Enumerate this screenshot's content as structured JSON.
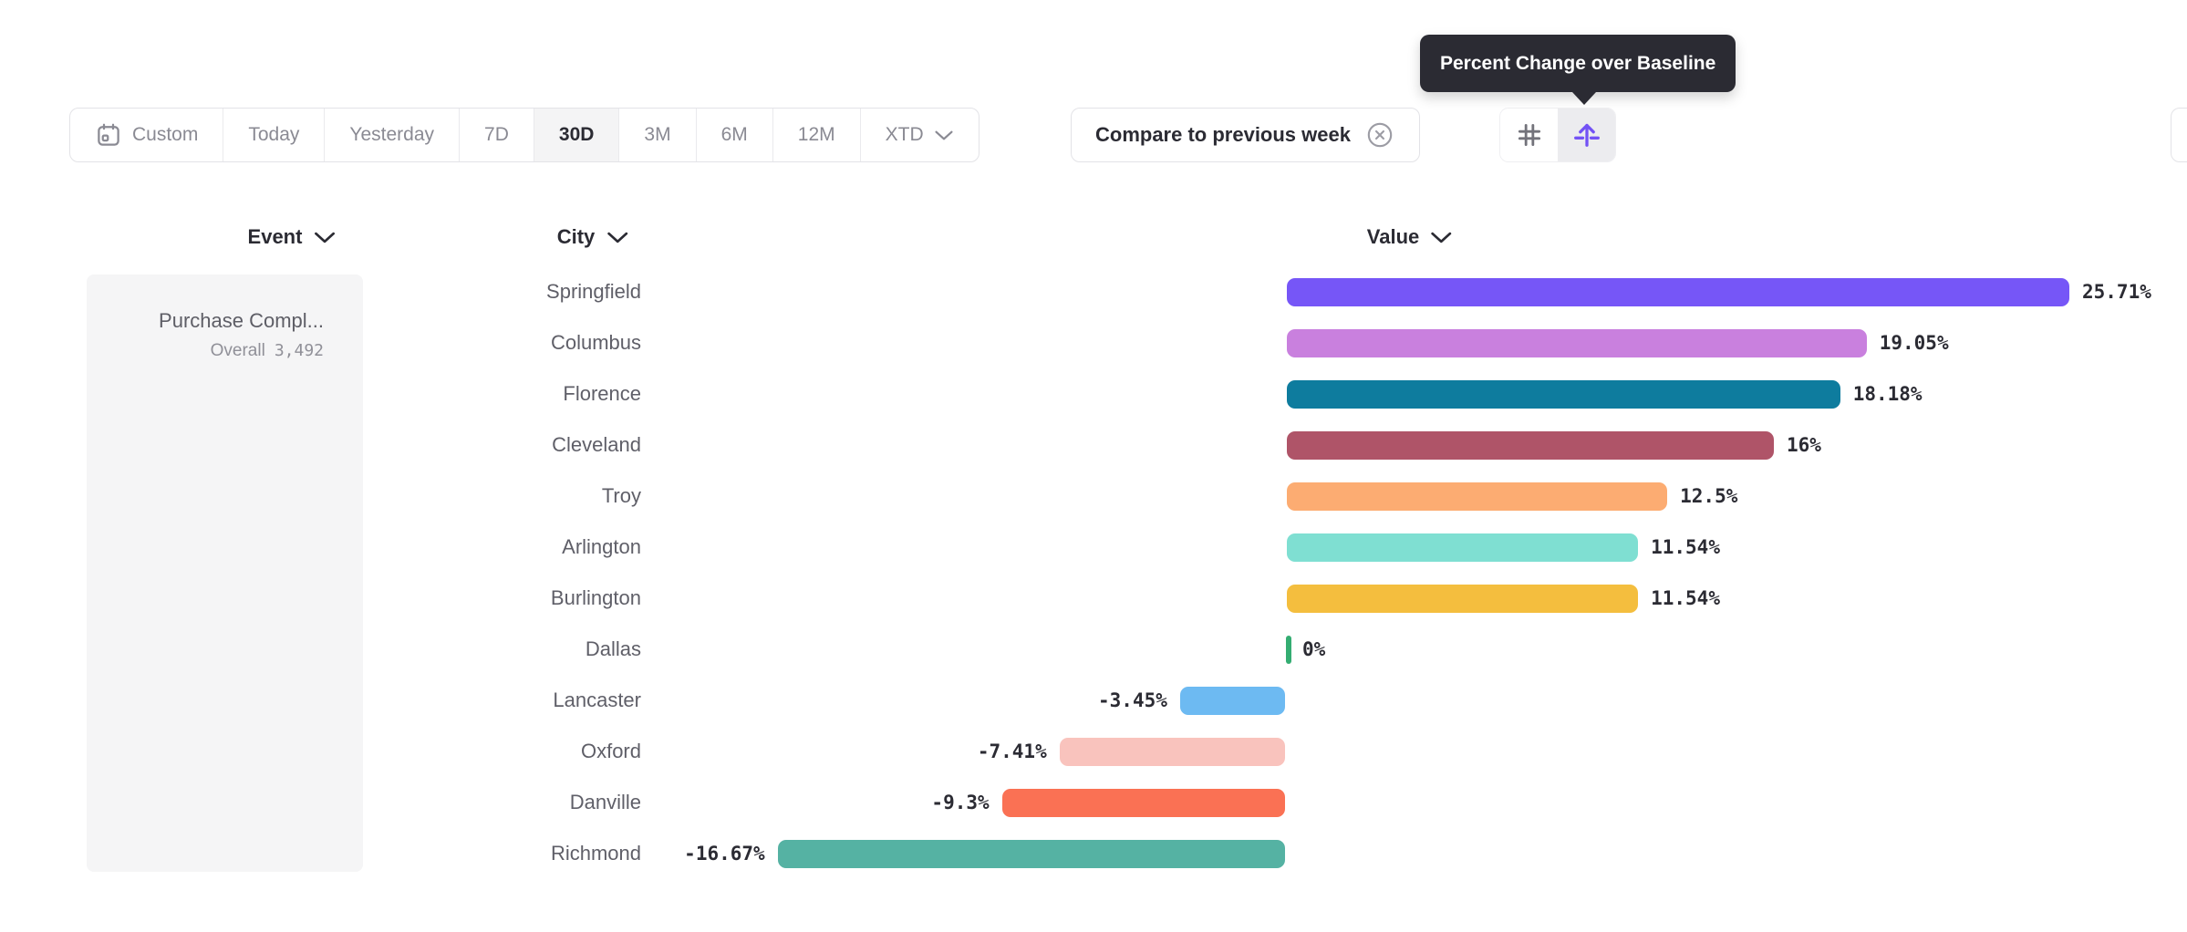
{
  "tooltip": {
    "text": "Percent Change over Baseline"
  },
  "toolbar": {
    "date_ranges": [
      {
        "label": "Custom",
        "icon": "calendar-icon",
        "selected": false
      },
      {
        "label": "Today",
        "selected": false
      },
      {
        "label": "Yesterday",
        "selected": false
      },
      {
        "label": "7D",
        "selected": false
      },
      {
        "label": "30D",
        "selected": true
      },
      {
        "label": "3M",
        "selected": false
      },
      {
        "label": "6M",
        "selected": false
      },
      {
        "label": "12M",
        "selected": false
      },
      {
        "label": "XTD",
        "has_chevron": true,
        "selected": false
      }
    ],
    "selected_range": "30D",
    "compare_chip": {
      "label": "Compare to previous week",
      "icon": "circle-x-icon"
    },
    "view_toggle": [
      {
        "icon": "grid-hash-icon",
        "selected": false
      },
      {
        "icon": "percent-change-over-baseline-icon",
        "selected": true,
        "accent": "#7352F5"
      }
    ]
  },
  "columns": {
    "event": {
      "label": "Event"
    },
    "city": {
      "label": "City"
    },
    "value": {
      "label": "Value"
    }
  },
  "event_panel": {
    "title": "Purchase Compl...",
    "metric_label": "Overall",
    "metric_value": "3,492"
  },
  "chart_data": {
    "type": "bar",
    "orientation": "horizontal",
    "unit": "percent change over baseline",
    "value_axis_label": "Value",
    "category_axis_label": "City",
    "baseline": 0,
    "max_value": 25.71,
    "min_value": -16.67,
    "categories": [
      "Springfield",
      "Columbus",
      "Florence",
      "Cleveland",
      "Troy",
      "Arlington",
      "Burlington",
      "Dallas",
      "Lancaster",
      "Oxford",
      "Danville",
      "Richmond"
    ],
    "values": [
      25.71,
      19.05,
      18.18,
      16,
      12.5,
      11.54,
      11.54,
      0,
      -3.45,
      -7.41,
      -9.3,
      -16.67
    ],
    "rows": [
      {
        "city": "Springfield",
        "value": 25.71,
        "label": "25.71%",
        "color": "#7656F7"
      },
      {
        "city": "Columbus",
        "value": 19.05,
        "label": "19.05%",
        "color": "#C980DE"
      },
      {
        "city": "Florence",
        "value": 18.18,
        "label": "18.18%",
        "color": "#0E7C9E"
      },
      {
        "city": "Cleveland",
        "value": 16,
        "label": "16%",
        "color": "#AF5468"
      },
      {
        "city": "Troy",
        "value": 12.5,
        "label": "12.5%",
        "color": "#FCAC72"
      },
      {
        "city": "Arlington",
        "value": 11.54,
        "label": "11.54%",
        "color": "#7FDFD2"
      },
      {
        "city": "Burlington",
        "value": 11.54,
        "label": "11.54%",
        "color": "#F4BE3E"
      },
      {
        "city": "Dallas",
        "value": 0,
        "label": "0%",
        "color": "#34AD72"
      },
      {
        "city": "Lancaster",
        "value": -3.45,
        "label": "-3.45%",
        "color": "#6DBAF2"
      },
      {
        "city": "Oxford",
        "value": -7.41,
        "label": "-7.41%",
        "color": "#F9C3BD"
      },
      {
        "city": "Danville",
        "value": -9.3,
        "label": "-9.3%",
        "color": "#FA7154"
      },
      {
        "city": "Richmond",
        "value": -16.67,
        "label": "-16.67%",
        "color": "#55B2A3"
      }
    ]
  },
  "colors": {
    "text_dark": "#2B2B33",
    "text_gray": "#8A8A93",
    "city_gray": "#5F5F68",
    "border": "#E3E3E7",
    "selected_segment_bg": "#F4F4F5",
    "event_panel_bg": "#F5F5F6",
    "tooltip_bg": "#2B2B33",
    "accent_purple": "#7352F5",
    "zero_tick_green": "#34AD72"
  }
}
